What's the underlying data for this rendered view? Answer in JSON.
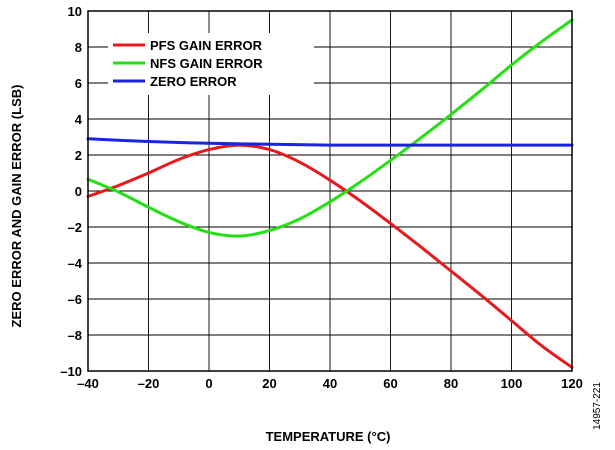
{
  "chart_data": {
    "type": "line",
    "xlabel": "TEMPERATURE (°C)",
    "ylabel": "ZERO ERROR AND GAIN ERROR (LSB)",
    "xlim": [
      -40,
      120
    ],
    "ylim": [
      -10,
      10
    ],
    "xticks": [
      -40,
      -20,
      0,
      20,
      40,
      60,
      80,
      100,
      120
    ],
    "yticks": [
      -10,
      -8,
      -6,
      -4,
      -2,
      0,
      2,
      4,
      6,
      8,
      10
    ],
    "xtick_labels": [
      "–40",
      "–20",
      "0",
      "20",
      "40",
      "60",
      "80",
      "100",
      "120"
    ],
    "ytick_labels": [
      "–10",
      "–8",
      "–6",
      "–4",
      "–2",
      "0",
      "2",
      "4",
      "6",
      "8",
      "10"
    ],
    "grid": true,
    "legend_position": "top-left",
    "figure_id": "14957-221",
    "series": [
      {
        "name": "PFS GAIN ERROR",
        "color": "#e8191c",
        "x": [
          -40,
          -30,
          -20,
          -10,
          0,
          10,
          20,
          30,
          40,
          50,
          60,
          70,
          80,
          90,
          100,
          110,
          120
        ],
        "y": [
          -0.3,
          0.3,
          1.0,
          1.75,
          2.3,
          2.55,
          2.3,
          1.6,
          0.6,
          -0.55,
          -1.8,
          -3.1,
          -4.45,
          -5.8,
          -7.2,
          -8.6,
          -9.8
        ]
      },
      {
        "name": "NFS GAIN ERROR",
        "color": "#22e012",
        "x": [
          -40,
          -30,
          -20,
          -10,
          0,
          10,
          20,
          30,
          40,
          50,
          60,
          70,
          80,
          90,
          100,
          110,
          120
        ],
        "y": [
          0.65,
          -0.05,
          -0.9,
          -1.7,
          -2.3,
          -2.5,
          -2.2,
          -1.55,
          -0.6,
          0.5,
          1.7,
          2.95,
          4.25,
          5.6,
          7.0,
          8.3,
          9.5
        ]
      },
      {
        "name": "ZERO ERROR",
        "color": "#1a24d8",
        "x": [
          -40,
          -20,
          0,
          20,
          40,
          60,
          80,
          100,
          120
        ],
        "y": [
          2.9,
          2.75,
          2.65,
          2.6,
          2.55,
          2.55,
          2.55,
          2.55,
          2.55
        ]
      }
    ]
  }
}
